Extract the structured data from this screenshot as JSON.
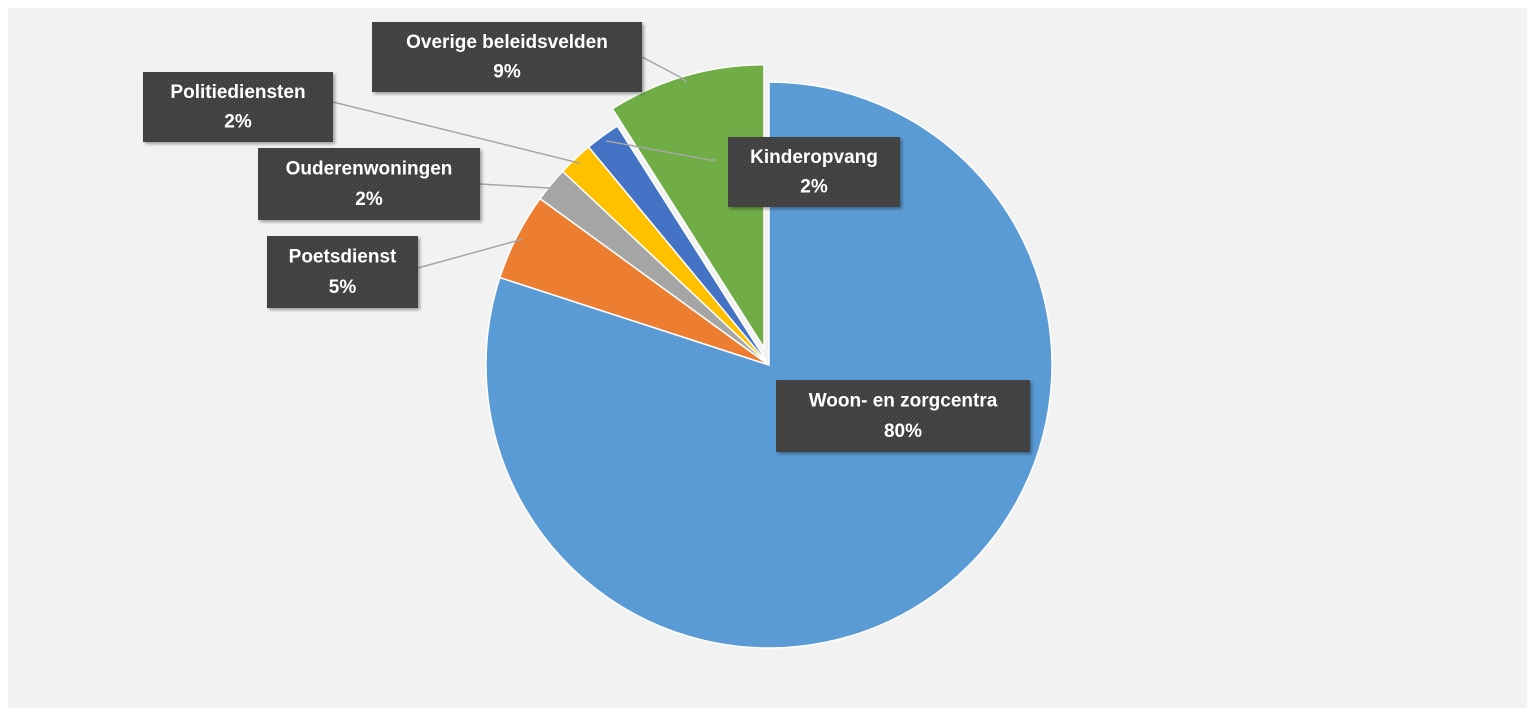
{
  "chart_data": {
    "type": "pie",
    "categories": [
      "Woon- en zorgcentra",
      "Poetsdienst",
      "Ouderenwoningen",
      "Politiediensten",
      "Kinderopvang",
      "Overige beleidsvelden"
    ],
    "values": [
      80,
      5,
      2,
      2,
      2,
      9
    ],
    "value_labels": [
      "80%",
      "5%",
      "2%",
      "2%",
      "2%",
      "9%"
    ],
    "colors": [
      "#5b9bd5",
      "#ed7d31",
      "#a5a5a5",
      "#ffc000",
      "#4472c4",
      "#70ad47"
    ]
  }
}
